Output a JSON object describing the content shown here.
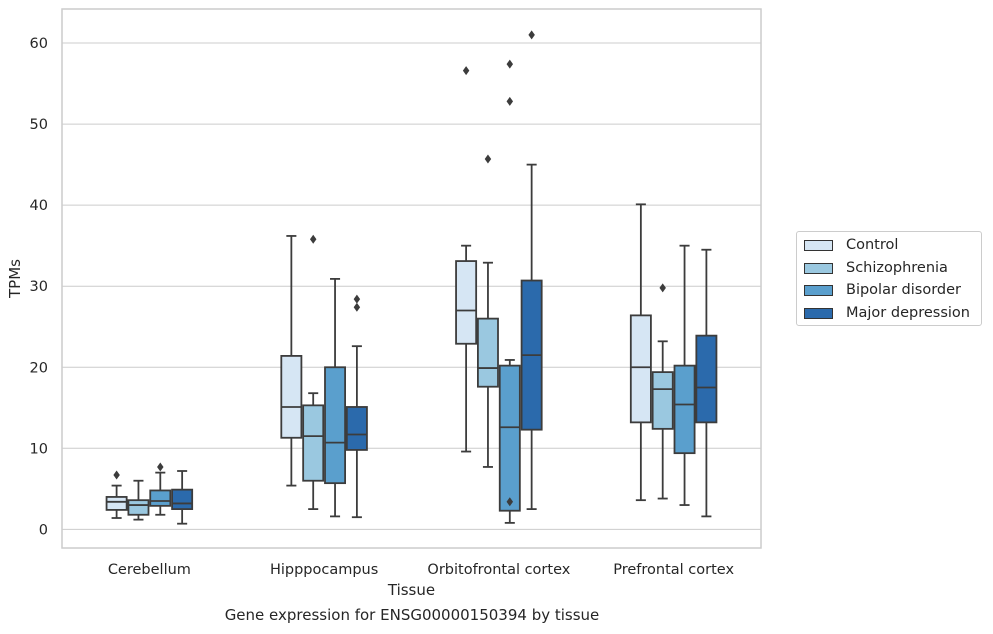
{
  "caption": "Gene expression for ENSG00000150394 by tissue",
  "chart_data": {
    "type": "box",
    "xlabel": "Tissue",
    "ylabel": "TPMs",
    "ylim": [
      -2.3,
      64.2
    ],
    "yticks": [
      0,
      10,
      20,
      30,
      40,
      50,
      60
    ],
    "grid": "horizontal",
    "legend_position": "right",
    "categories": [
      "Cerebellum",
      "Hipppocampus",
      "Orbitofrontal cortex",
      "Prefrontal cortex"
    ],
    "series": [
      {
        "name": "Control",
        "color": "#d6e6f4",
        "boxes": [
          {
            "whislo": 1.4,
            "q1": 2.4,
            "med": 3.4,
            "q3": 4.0,
            "whishi": 5.4,
            "fliers": [
              6.7
            ]
          },
          {
            "whislo": 5.4,
            "q1": 11.3,
            "med": 15.1,
            "q3": 21.4,
            "whishi": 36.2,
            "fliers": []
          },
          {
            "whislo": 9.6,
            "q1": 22.9,
            "med": 27.0,
            "q3": 33.1,
            "whishi": 35.0,
            "fliers": [
              56.6
            ]
          },
          {
            "whislo": 3.6,
            "q1": 13.2,
            "med": 20.0,
            "q3": 26.4,
            "whishi": 40.1,
            "fliers": []
          }
        ]
      },
      {
        "name": "Schizophrenia",
        "color": "#9ac8e0",
        "boxes": [
          {
            "whislo": 1.2,
            "q1": 1.8,
            "med": 3.0,
            "q3": 3.6,
            "whishi": 6.0,
            "fliers": []
          },
          {
            "whislo": 2.5,
            "q1": 6.0,
            "med": 11.5,
            "q3": 15.3,
            "whishi": 16.8,
            "fliers": [
              35.8
            ]
          },
          {
            "whislo": 7.7,
            "q1": 17.6,
            "med": 19.9,
            "q3": 26.0,
            "whishi": 32.9,
            "fliers": [
              45.7
            ]
          },
          {
            "whislo": 3.8,
            "q1": 12.4,
            "med": 17.3,
            "q3": 19.4,
            "whishi": 23.2,
            "fliers": [
              29.8
            ]
          }
        ]
      },
      {
        "name": "Bipolar disorder",
        "color": "#5a9fcd",
        "boxes": [
          {
            "whislo": 1.8,
            "q1": 2.9,
            "med": 3.5,
            "q3": 4.8,
            "whishi": 7.0,
            "fliers": [
              7.7
            ]
          },
          {
            "whislo": 1.6,
            "q1": 5.7,
            "med": 10.7,
            "q3": 20.0,
            "whishi": 30.9,
            "fliers": []
          },
          {
            "whislo": 0.8,
            "q1": 2.3,
            "med": 12.6,
            "q3": 20.2,
            "whishi": 20.9,
            "fliers": [
              3.4,
              52.8,
              57.4
            ]
          },
          {
            "whislo": 3.0,
            "q1": 9.4,
            "med": 15.4,
            "q3": 20.2,
            "whishi": 35.0,
            "fliers": []
          }
        ]
      },
      {
        "name": "Major depression",
        "color": "#2b6aac",
        "boxes": [
          {
            "whislo": 0.7,
            "q1": 2.5,
            "med": 3.2,
            "q3": 4.9,
            "whishi": 7.2,
            "fliers": []
          },
          {
            "whislo": 1.5,
            "q1": 9.8,
            "med": 11.7,
            "q3": 15.1,
            "whishi": 22.6,
            "fliers": [
              27.4,
              28.4
            ]
          },
          {
            "whislo": 2.5,
            "q1": 12.3,
            "med": 21.5,
            "q3": 30.7,
            "whishi": 45.0,
            "fliers": [
              61.0
            ]
          },
          {
            "whislo": 1.6,
            "q1": 13.2,
            "med": 17.5,
            "q3": 23.9,
            "whishi": 34.5,
            "fliers": []
          }
        ]
      }
    ]
  }
}
